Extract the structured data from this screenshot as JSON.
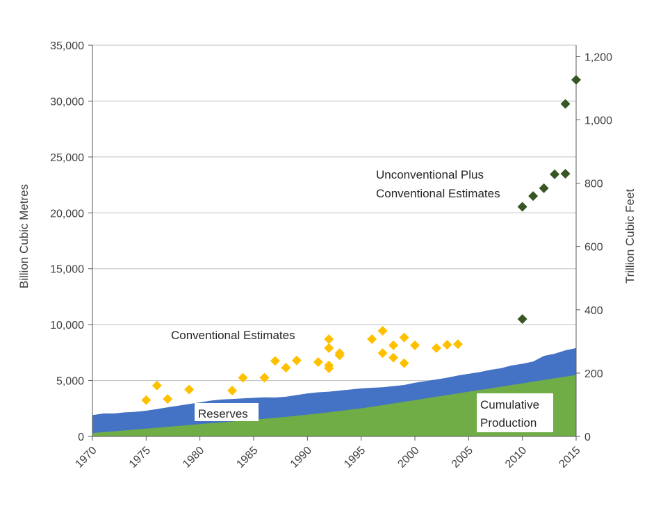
{
  "chart_data": {
    "type": "area",
    "title": "",
    "xlabel": "",
    "ylabel_left": "Billion Cubic Metres",
    "ylabel_right": "Trillion Cubic Feet",
    "xlim": [
      1970,
      2015
    ],
    "ylim_left": [
      0,
      35000
    ],
    "ylim_right": [
      0,
      1200
    ],
    "x_ticks": [
      "1970",
      "1975",
      "1980",
      "1985",
      "1990",
      "1995",
      "2000",
      "2005",
      "2010",
      "2015"
    ],
    "y_ticks_left": [
      "0",
      "5,000",
      "10,000",
      "15,000",
      "20,000",
      "25,000",
      "30,000",
      "35,000"
    ],
    "y_ticks_right": [
      "0",
      "200",
      "400",
      "600",
      "800",
      "1,000",
      "1,200"
    ],
    "grid": "horizontal",
    "legend": "none",
    "series": [
      {
        "name": "Cumulative Production",
        "kind": "area",
        "color": "#70ad47",
        "x": [
          1970,
          1971,
          1972,
          1973,
          1974,
          1975,
          1976,
          1977,
          1978,
          1979,
          1980,
          1981,
          1982,
          1983,
          1984,
          1985,
          1986,
          1987,
          1988,
          1989,
          1990,
          1991,
          1992,
          1993,
          1994,
          1995,
          1996,
          1997,
          1998,
          1999,
          2000,
          2001,
          2002,
          2003,
          2004,
          2005,
          2006,
          2007,
          2008,
          2009,
          2010,
          2011,
          2012,
          2013,
          2014,
          2015
        ],
        "values": [
          300,
          380,
          460,
          540,
          620,
          700,
          780,
          860,
          940,
          1020,
          1100,
          1180,
          1260,
          1340,
          1420,
          1500,
          1580,
          1660,
          1750,
          1850,
          1950,
          2050,
          2160,
          2280,
          2400,
          2520,
          2650,
          2800,
          2950,
          3100,
          3250,
          3400,
          3550,
          3700,
          3850,
          4000,
          4150,
          4300,
          4450,
          4600,
          4750,
          4900,
          5050,
          5200,
          5350,
          5500
        ]
      },
      {
        "name": "Reserves",
        "kind": "area",
        "color": "#4472c4",
        "note_stack": "top of band = cumulative production + reserves",
        "x": [
          1970,
          1971,
          1972,
          1973,
          1974,
          1975,
          1976,
          1977,
          1978,
          1979,
          1980,
          1981,
          1982,
          1983,
          1984,
          1985,
          1986,
          1987,
          1988,
          1989,
          1990,
          1991,
          1992,
          1993,
          1994,
          1995,
          1996,
          1997,
          1998,
          1999,
          2000,
          2001,
          2002,
          2003,
          2004,
          2005,
          2006,
          2007,
          2008,
          2009,
          2010,
          2011,
          2012,
          2013,
          2014,
          2015
        ],
        "values": [
          1900,
          2050,
          2050,
          2150,
          2200,
          2300,
          2450,
          2600,
          2750,
          2900,
          3050,
          3200,
          3300,
          3350,
          3400,
          3450,
          3500,
          3480,
          3550,
          3700,
          3850,
          3950,
          4000,
          4100,
          4200,
          4300,
          4350,
          4400,
          4500,
          4600,
          4800,
          4950,
          5100,
          5250,
          5450,
          5600,
          5750,
          5950,
          6100,
          6350,
          6500,
          6700,
          7200,
          7400,
          7700,
          7900
        ]
      },
      {
        "name": "Conventional Estimates",
        "kind": "scatter",
        "color": "#ffc000",
        "points": [
          [
            1975,
            3250
          ],
          [
            1976,
            4550
          ],
          [
            1977,
            3350
          ],
          [
            1979,
            4200
          ],
          [
            1983,
            4100
          ],
          [
            1984,
            5250
          ],
          [
            1986,
            5250
          ],
          [
            1987,
            6750
          ],
          [
            1988,
            6150
          ],
          [
            1989,
            6800
          ],
          [
            1991,
            6650
          ],
          [
            1992,
            8700
          ],
          [
            1992,
            7900
          ],
          [
            1992,
            6350
          ],
          [
            1992,
            6100
          ],
          [
            1993,
            7450
          ],
          [
            1993,
            7250
          ],
          [
            1996,
            8700
          ],
          [
            1997,
            9450
          ],
          [
            1997,
            7450
          ],
          [
            1998,
            8150
          ],
          [
            1998,
            7050
          ],
          [
            1999,
            8850
          ],
          [
            1999,
            6550
          ],
          [
            2000,
            8150
          ],
          [
            2002,
            7900
          ],
          [
            2003,
            8200
          ],
          [
            2004,
            8250
          ]
        ]
      },
      {
        "name": "Unconventional Plus Conventional Estimates",
        "kind": "scatter",
        "color": "#375623",
        "points": [
          [
            2010,
            10500
          ],
          [
            2010,
            20550
          ],
          [
            2011,
            21500
          ],
          [
            2012,
            22200
          ],
          [
            2013,
            23450
          ],
          [
            2014,
            23500
          ],
          [
            2014,
            29750
          ],
          [
            2015,
            31900
          ]
        ]
      }
    ],
    "annotations": [
      {
        "text": "Conventional Estimates"
      },
      {
        "text": "Unconventional Plus"
      },
      {
        "text": "Conventional Estimates"
      },
      {
        "text": "Reserves"
      },
      {
        "text": "Cumulative"
      },
      {
        "text": "Production"
      }
    ]
  }
}
